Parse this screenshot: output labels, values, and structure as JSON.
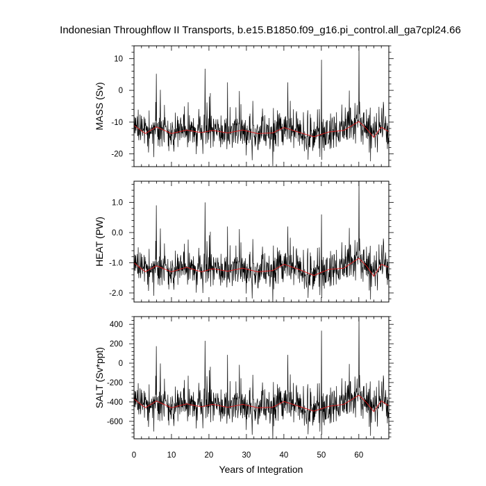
{
  "figure": {
    "title": "Indonesian Throughflow II Transports, b.e15.B1850.f09_g16.pi_control.all_ga7cpl24.66",
    "xlabel": "Years of Integration"
  },
  "colors": {
    "background": "#ffffff",
    "axes": "#000000",
    "monthly_series": "#000000",
    "smoothed_series": "#e31a1c"
  },
  "chart_data": [
    {
      "type": "line",
      "name": "mass",
      "ylabel": "MASS (Sv)",
      "xlim": [
        0,
        68
      ],
      "ylim": [
        -24,
        14
      ],
      "xticks": [
        0,
        10,
        20,
        30,
        40,
        50,
        60
      ],
      "xtick_labels": [
        "0",
        "10",
        "20",
        "30",
        "40",
        "50",
        "60"
      ],
      "yticks": [
        -20,
        -10,
        0,
        10
      ],
      "ytick_labels": [
        "-20",
        "-10",
        "0",
        "10"
      ],
      "grid": false,
      "smoothed_mean": -13.0,
      "monthly_range": [
        -23,
        14
      ],
      "spikes": [
        [
          6.0,
          5.2
        ],
        [
          19.0,
          6.8
        ],
        [
          25.0,
          2.5
        ],
        [
          41.0,
          2.5
        ],
        [
          50.0,
          9.6
        ],
        [
          60.0,
          14.0
        ]
      ],
      "smoothed_points": [
        [
          0,
          -11.0
        ],
        [
          3,
          -13.6
        ],
        [
          6,
          -11.5
        ],
        [
          10,
          -13.6
        ],
        [
          14,
          -12.5
        ],
        [
          18,
          -13.3
        ],
        [
          21,
          -12.6
        ],
        [
          25,
          -13.4
        ],
        [
          29,
          -12.5
        ],
        [
          33,
          -13.6
        ],
        [
          37,
          -13.4
        ],
        [
          40,
          -11.7
        ],
        [
          44,
          -13.2
        ],
        [
          48,
          -14.6
        ],
        [
          52,
          -13.1
        ],
        [
          56,
          -12.6
        ],
        [
          60,
          -9.8
        ],
        [
          62,
          -12.0
        ],
        [
          64,
          -14.8
        ],
        [
          66,
          -11.6
        ],
        [
          68,
          -13.0
        ]
      ]
    },
    {
      "type": "line",
      "name": "heat",
      "ylabel": "HEAT (PW)",
      "xlim": [
        0,
        68
      ],
      "ylim": [
        -2.3,
        1.7
      ],
      "xticks": [
        0,
        10,
        20,
        30,
        40,
        50,
        60
      ],
      "xtick_labels": [
        "0",
        "10",
        "20",
        "30",
        "40",
        "50",
        "60"
      ],
      "yticks": [
        -2.0,
        -1.0,
        0.0,
        1.0
      ],
      "ytick_labels": [
        "-2.0",
        "-1.0",
        "0.0",
        "1.0"
      ],
      "grid": false,
      "smoothed_mean": -1.22,
      "monthly_range": [
        -2.3,
        1.7
      ],
      "spikes": [
        [
          6.0,
          0.9
        ],
        [
          19.0,
          1.0
        ],
        [
          25.0,
          0.2
        ],
        [
          41.0,
          0.2
        ],
        [
          50.0,
          0.6
        ],
        [
          60.0,
          1.7
        ]
      ],
      "smoothed_points": [
        [
          0,
          -1.0
        ],
        [
          3,
          -1.3
        ],
        [
          6,
          -1.1
        ],
        [
          10,
          -1.3
        ],
        [
          14,
          -1.15
        ],
        [
          18,
          -1.3
        ],
        [
          21,
          -1.2
        ],
        [
          25,
          -1.28
        ],
        [
          29,
          -1.18
        ],
        [
          33,
          -1.3
        ],
        [
          37,
          -1.26
        ],
        [
          40,
          -1.05
        ],
        [
          44,
          -1.22
        ],
        [
          48,
          -1.42
        ],
        [
          52,
          -1.22
        ],
        [
          56,
          -1.18
        ],
        [
          60,
          -0.85
        ],
        [
          62,
          -1.1
        ],
        [
          64,
          -1.45
        ],
        [
          66,
          -1.05
        ],
        [
          68,
          -1.15
        ]
      ]
    },
    {
      "type": "line",
      "name": "salt",
      "ylabel": "SALT (Sv*ppt)",
      "xlim": [
        0,
        68
      ],
      "ylim": [
        -780,
        480
      ],
      "xticks": [
        0,
        10,
        20,
        30,
        40,
        50,
        60
      ],
      "xtick_labels": [
        "0",
        "10",
        "20",
        "30",
        "40",
        "50",
        "60"
      ],
      "yticks": [
        -600,
        -400,
        -200,
        0,
        200,
        400
      ],
      "ytick_labels": [
        "-600",
        "-400",
        "-200",
        "0",
        "200",
        "400"
      ],
      "grid": false,
      "smoothed_mean": -440,
      "monthly_range": [
        -780,
        470
      ],
      "spikes": [
        [
          6.0,
          175
        ],
        [
          19.0,
          230
        ],
        [
          25.0,
          85
        ],
        [
          41.0,
          85
        ],
        [
          50.0,
          335
        ],
        [
          60.0,
          470
        ]
      ],
      "smoothed_points": [
        [
          0,
          -370
        ],
        [
          3,
          -460
        ],
        [
          6,
          -390
        ],
        [
          10,
          -460
        ],
        [
          14,
          -420
        ],
        [
          18,
          -450
        ],
        [
          21,
          -425
        ],
        [
          25,
          -455
        ],
        [
          29,
          -425
        ],
        [
          33,
          -460
        ],
        [
          37,
          -455
        ],
        [
          40,
          -395
        ],
        [
          44,
          -445
        ],
        [
          48,
          -495
        ],
        [
          52,
          -445
        ],
        [
          56,
          -425
        ],
        [
          60,
          -330
        ],
        [
          62,
          -405
        ],
        [
          64,
          -500
        ],
        [
          66,
          -390
        ],
        [
          68,
          -440
        ]
      ]
    }
  ]
}
